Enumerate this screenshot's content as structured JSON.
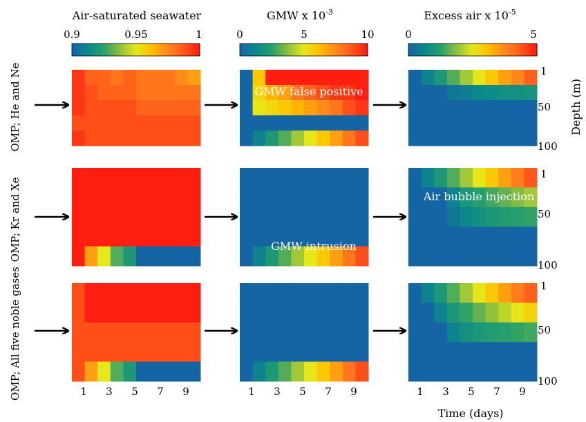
{
  "colorbars": [
    {
      "title_main": "Air-saturated seawater",
      "title_sup": "",
      "min": 0.9,
      "max": 1,
      "ticks": [
        "0.9",
        "0.95",
        "1"
      ]
    },
    {
      "title_main": "GMW x 10",
      "title_sup": "-3",
      "min": 0,
      "max": 10,
      "ticks": [
        "0",
        "5",
        "10"
      ]
    },
    {
      "title_main": "Excess air x 10",
      "title_sup": "-5",
      "min": 0,
      "max": 5,
      "ticks": [
        "0",
        "5"
      ]
    }
  ],
  "row_labels": [
    "OMP; He and Ne",
    "OMP; Kr and Xe",
    "OMP; All five noble gases"
  ],
  "x_ticks": [
    "1",
    "3",
    "5",
    "7",
    "9"
  ],
  "y_ticks": [
    "1",
    "50",
    "100"
  ],
  "xlabel": "Time (days)",
  "ylabel": "Depth (m)",
  "annotations": {
    "gmw_false_positive": "GMW false positive",
    "gmw_intrusion": "GMW intrusion",
    "air_bubble_injection": "Air bubble injection"
  },
  "colors": {
    "colormap": [
      "#1565a5",
      "#0a8a8a",
      "#29a06a",
      "#8ec040",
      "#e6e61a",
      "#ffc000",
      "#ff8a1a",
      "#ff5a1a",
      "#ff1e10"
    ],
    "text_annotation": "#ffffff",
    "arrow": "#000000"
  },
  "chart_data": [
    {
      "type": "heatmap",
      "title": "Air-saturated seawater",
      "row_label": "OMP; He and Ne",
      "x": [
        1,
        2,
        3,
        4,
        5,
        6,
        7,
        8,
        9,
        10
      ],
      "y_rows": 5,
      "scale": [
        0.9,
        1
      ],
      "values": [
        [
          0.995,
          0.985,
          0.985,
          0.98,
          0.985,
          0.98,
          0.98,
          0.98,
          0.975,
          0.97
        ],
        [
          0.995,
          0.99,
          0.985,
          0.985,
          0.985,
          0.98,
          0.98,
          0.98,
          0.98,
          0.98
        ],
        [
          0.995,
          0.99,
          0.99,
          0.99,
          0.99,
          0.985,
          0.985,
          0.985,
          0.985,
          0.985
        ],
        [
          0.99,
          0.99,
          0.99,
          0.99,
          0.99,
          0.99,
          0.99,
          0.99,
          0.99,
          0.99
        ],
        [
          0.995,
          0.99,
          0.99,
          0.99,
          0.99,
          0.99,
          0.99,
          0.99,
          0.99,
          0.99
        ]
      ]
    },
    {
      "type": "heatmap",
      "title": "GMW",
      "row_label": "OMP; He and Ne",
      "x": [
        1,
        2,
        3,
        4,
        5,
        6,
        7,
        8,
        9,
        10
      ],
      "y_rows": 5,
      "scale": [
        0,
        10
      ],
      "values": [
        [
          0,
          6,
          10,
          10,
          10,
          10,
          10,
          10,
          10,
          10
        ],
        [
          0,
          5.5,
          6.5,
          7,
          8,
          8.5,
          9,
          9.5,
          9.5,
          10
        ],
        [
          0,
          5,
          5.5,
          6,
          6.5,
          7,
          7.5,
          8,
          9,
          9.5
        ],
        [
          0,
          0,
          0,
          0,
          0,
          0,
          0,
          0,
          0,
          0
        ],
        [
          0,
          1,
          2,
          3,
          4,
          5,
          6,
          7,
          8,
          9
        ]
      ]
    },
    {
      "type": "heatmap",
      "title": "Excess air",
      "row_label": "OMP; He and Ne",
      "x": [
        1,
        2,
        3,
        4,
        5,
        6,
        7,
        8,
        9,
        10
      ],
      "y_rows": 5,
      "scale": [
        0,
        5
      ],
      "values": [
        [
          0,
          0.5,
          1,
          1.5,
          2,
          2.5,
          3,
          3.5,
          3.8,
          4.3
        ],
        [
          0,
          0,
          0,
          0.3,
          0.4,
          0.6,
          0.7,
          0.8,
          0.8,
          0.9
        ],
        [
          0,
          0,
          0,
          0,
          0,
          0,
          0,
          0,
          0,
          0
        ],
        [
          0,
          0,
          0,
          0,
          0,
          0,
          0,
          0,
          0,
          0
        ],
        [
          0,
          0,
          0,
          0,
          0,
          0,
          0,
          0,
          0,
          0
        ]
      ]
    },
    {
      "type": "heatmap",
      "title": "Air-saturated seawater",
      "row_label": "OMP; Kr and Xe",
      "x": [
        1,
        2,
        3,
        4,
        5,
        6,
        7,
        8,
        9,
        10
      ],
      "y_rows": 5,
      "scale": [
        0.9,
        1
      ],
      "values": [
        [
          1,
          1,
          1,
          1,
          1,
          1,
          1,
          1,
          1,
          1
        ],
        [
          1,
          1,
          1,
          1,
          1,
          1,
          1,
          1,
          1,
          1
        ],
        [
          1,
          1,
          1,
          1,
          1,
          1,
          1,
          1,
          1,
          1
        ],
        [
          1,
          1,
          1,
          1,
          1,
          1,
          1,
          1,
          1,
          1
        ],
        [
          1,
          0.97,
          0.95,
          0.93,
          0.92,
          0.9,
          0.9,
          0.9,
          0.9,
          0.9
        ]
      ]
    },
    {
      "type": "heatmap",
      "title": "GMW",
      "row_label": "OMP; Kr and Xe",
      "x": [
        1,
        2,
        3,
        4,
        5,
        6,
        7,
        8,
        9,
        10
      ],
      "y_rows": 5,
      "scale": [
        0,
        10
      ],
      "values": [
        [
          0,
          0,
          0,
          0,
          0,
          0,
          0,
          0,
          0,
          0
        ],
        [
          0,
          0,
          0,
          0,
          0,
          0,
          0,
          0,
          0,
          0
        ],
        [
          0,
          0,
          0,
          0,
          0,
          0,
          0,
          0,
          0,
          0
        ],
        [
          0,
          0,
          0,
          0,
          0,
          0,
          0,
          0,
          0,
          0
        ],
        [
          0,
          1,
          2,
          3,
          4,
          5,
          6,
          7,
          8,
          9
        ]
      ]
    },
    {
      "type": "heatmap",
      "title": "Excess air",
      "row_label": "OMP; Kr and Xe",
      "x": [
        1,
        2,
        3,
        4,
        5,
        6,
        7,
        8,
        9,
        10
      ],
      "y_rows": 5,
      "scale": [
        0,
        5
      ],
      "values": [
        [
          0,
          0.5,
          1,
          1.5,
          2,
          2.5,
          3,
          3.5,
          3.9,
          4.4
        ],
        [
          0,
          0,
          0,
          0.5,
          1,
          1.2,
          1.4,
          1.6,
          1.8,
          2
        ],
        [
          0,
          0,
          0,
          0.3,
          0.6,
          0.8,
          1,
          1.1,
          1.2,
          1.3
        ],
        [
          0,
          0,
          0,
          0,
          0,
          0,
          0,
          0,
          0,
          0
        ],
        [
          0,
          0,
          0,
          0,
          0,
          0,
          0,
          0,
          0,
          0
        ]
      ]
    },
    {
      "type": "heatmap",
      "title": "Air-saturated seawater",
      "row_label": "OMP; All five noble gases",
      "x": [
        1,
        2,
        3,
        4,
        5,
        6,
        7,
        8,
        9,
        10
      ],
      "y_rows": 5,
      "scale": [
        0.9,
        1
      ],
      "values": [
        [
          0.99,
          1,
          1,
          1,
          1,
          1,
          1,
          1,
          1,
          1
        ],
        [
          0.99,
          1,
          1,
          1,
          1,
          1,
          1,
          1,
          1,
          1
        ],
        [
          0.99,
          0.99,
          0.99,
          0.99,
          0.99,
          0.99,
          0.99,
          0.99,
          0.99,
          0.99
        ],
        [
          0.99,
          0.99,
          0.99,
          0.99,
          0.99,
          0.99,
          0.99,
          0.99,
          0.99,
          0.99
        ],
        [
          0.99,
          0.97,
          0.95,
          0.93,
          0.92,
          0.9,
          0.9,
          0.9,
          0.9,
          0.9
        ]
      ]
    },
    {
      "type": "heatmap",
      "title": "GMW",
      "row_label": "OMP; All five noble gases",
      "x": [
        1,
        2,
        3,
        4,
        5,
        6,
        7,
        8,
        9,
        10
      ],
      "y_rows": 5,
      "scale": [
        0,
        10
      ],
      "values": [
        [
          0,
          0,
          0,
          0,
          0,
          0,
          0,
          0,
          0,
          0
        ],
        [
          0,
          0,
          0,
          0,
          0,
          0,
          0,
          0,
          0,
          0
        ],
        [
          0,
          0,
          0,
          0,
          0,
          0,
          0,
          0,
          0,
          0
        ],
        [
          0,
          0,
          0,
          0,
          0,
          0,
          0,
          0,
          0,
          0
        ],
        [
          0,
          1,
          2,
          3,
          4,
          5,
          6,
          7,
          8,
          9
        ]
      ]
    },
    {
      "type": "heatmap",
      "title": "Excess air",
      "row_label": "OMP; All five noble gases",
      "x": [
        1,
        2,
        3,
        4,
        5,
        6,
        7,
        8,
        9,
        10
      ],
      "y_rows": 5,
      "scale": [
        0,
        5
      ],
      "values": [
        [
          0,
          0.5,
          1,
          1.5,
          2,
          2.5,
          3,
          3.5,
          3.9,
          4.3
        ],
        [
          0,
          0,
          0.5,
          1,
          1.3,
          1.6,
          1.9,
          2.2,
          2.5,
          2.8
        ],
        [
          0,
          0,
          0,
          0.5,
          0.8,
          1,
          1.1,
          1.2,
          1.3,
          1.4
        ],
        [
          0,
          0,
          0,
          0,
          0,
          0,
          0,
          0,
          0,
          0
        ],
        [
          0,
          0,
          0,
          0,
          0,
          0,
          0,
          0,
          0,
          0
        ]
      ]
    }
  ]
}
